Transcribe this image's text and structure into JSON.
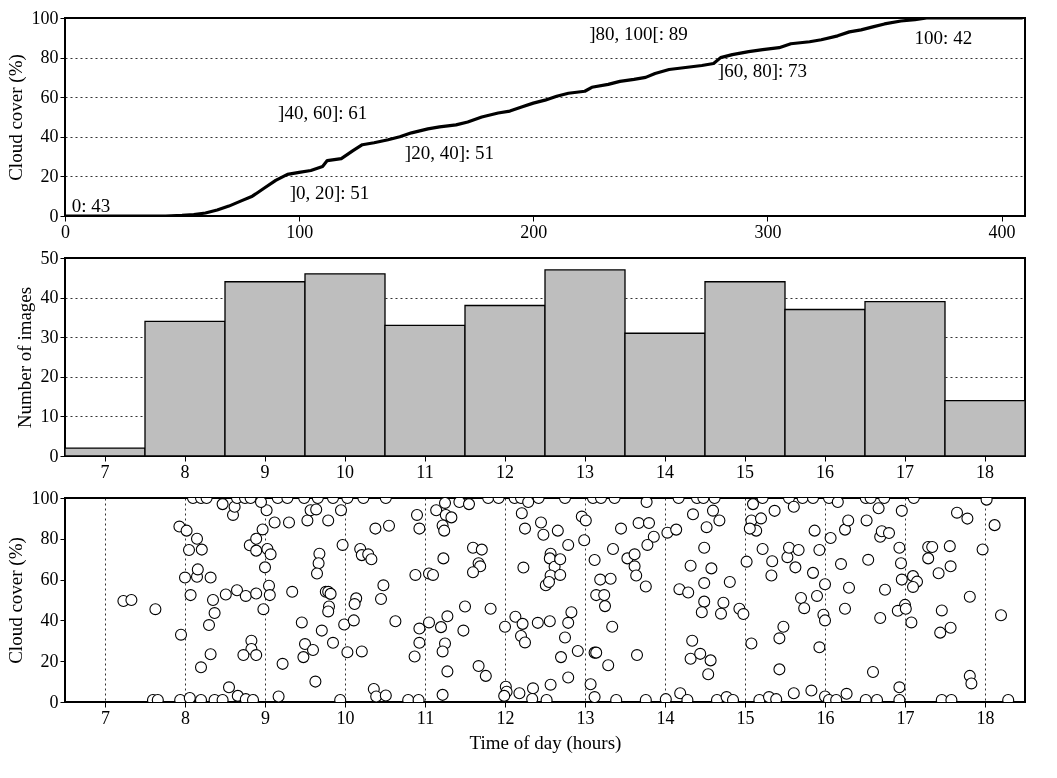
{
  "chart_data": [
    {
      "type": "line",
      "ylabel": "Cloud cover (%)",
      "xlim": [
        0,
        410
      ],
      "xticks": [
        0,
        100,
        200,
        300,
        400
      ],
      "ylim": [
        0,
        100
      ],
      "yticks": [
        0,
        20,
        40,
        60,
        80,
        100
      ],
      "grid": "y",
      "series": [
        {
          "color": "#000000",
          "x": [
            0,
            43,
            50,
            55,
            60,
            65,
            70,
            75,
            80,
            85,
            90,
            95,
            100,
            105,
            110,
            112,
            118,
            123,
            127,
            132,
            138,
            143,
            148,
            155,
            160,
            167,
            172,
            178,
            185,
            190,
            195,
            200,
            205,
            210,
            215,
            222,
            225,
            232,
            237,
            243,
            248,
            252,
            258,
            265,
            272,
            277,
            280,
            285,
            292,
            298,
            305,
            310,
            318,
            323,
            330,
            335,
            340,
            345,
            350,
            357,
            363,
            368,
            409
          ],
          "values": [
            0,
            0,
            0.3,
            0.7,
            1.5,
            3,
            5,
            7.5,
            10,
            14,
            18,
            21,
            22,
            23,
            25,
            28,
            29,
            33,
            36,
            37,
            38.5,
            40,
            42,
            44,
            45,
            46,
            47.5,
            50,
            52,
            53,
            55,
            57,
            58.5,
            60.5,
            62,
            63,
            65,
            66.5,
            68,
            69,
            70,
            72,
            74,
            75,
            76,
            77,
            80,
            81.5,
            83,
            84,
            85,
            87,
            88,
            89,
            91,
            93,
            94,
            95.5,
            97,
            98.5,
            99.2,
            100,
            100
          ]
        }
      ],
      "annotations": [
        "0: 43",
        "]0, 20]: 51",
        "]40, 60]: 61",
        "]20, 40]: 51",
        "]80, 100[: 89",
        "]60, 80]: 73",
        "100: 42"
      ]
    },
    {
      "type": "bar",
      "ylabel": "Number of images",
      "color": "#bebebe",
      "categories": [
        "7",
        "8",
        "9",
        "10",
        "11",
        "12",
        "13",
        "14",
        "15",
        "16",
        "17",
        "18"
      ],
      "values": [
        2,
        34,
        44,
        46,
        33,
        38,
        47,
        31,
        44,
        37,
        39,
        14
      ],
      "ylim": [
        0,
        50
      ],
      "yticks": [
        0,
        10,
        20,
        30,
        40,
        50
      ],
      "grid": "y"
    },
    {
      "type": "scatter",
      "xlabel": "Time of day (hours)",
      "ylabel": "Cloud cover (%)",
      "marker": "circle",
      "xlim": [
        6.5,
        18.5
      ],
      "xticks": [
        7,
        8,
        9,
        10,
        11,
        12,
        13,
        14,
        15,
        16,
        17,
        18
      ],
      "ylim": [
        0,
        100
      ],
      "yticks": [
        0,
        20,
        40,
        60,
        80,
        100
      ],
      "grid": "x",
      "series": [
        {
          "color": "#000000",
          "x": [
            7.23,
            7.33,
            7.63,
            7.6,
            7.66,
            7.95,
            7.93,
            8.02,
            8.15,
            8.05,
            8.21,
            8.0,
            8.15,
            8.16,
            8.32,
            8.07,
            8.35,
            8.37,
            8.3,
            8.32,
            8.2,
            8.51,
            8.65,
            8.76,
            8.89,
            8.81,
            8.89,
            8.89,
            8.97,
            9.02,
            8.6,
            8.62,
            8.47,
            8.1,
            8.2,
            8.27,
            8.65,
            8.75,
            8.82,
            8.95,
            9.16,
            9.28,
            9.49,
            9.66,
            9.12,
            9.3,
            9.53,
            9.57,
            9.64,
            9.03,
            9.07,
            9.0,
            9.05,
            9.06,
            8.98,
            9.34,
            9.46,
            9.5,
            9.48,
            9.6,
            8.83,
            8.83,
            8.73,
            8.89,
            9.22,
            9.63,
            9.68,
            9.67,
            9.65,
            9.76,
            8.55,
            8.66,
            8.76,
            8.85,
            7.94,
            8.06,
            8.2,
            8.37,
            8.47,
            9.17,
            9.79,
            9.95,
            9.85,
            10.03,
            10.23,
            10.51,
            9.97,
            10.19,
            10.21,
            10.29,
            10.33,
            10.38,
            10.55,
            9.79,
            9.82,
            9.8,
            9.79,
            10.14,
            10.12,
            10.48,
            10.45,
            9.99,
            10.11,
            9.71,
            9.85,
            10.03,
            10.21,
            10.63,
            10.36,
            10.39,
            10.51,
            9.94,
            10.79,
            10.92,
            10.9,
            10.93,
            10.88,
            11.05,
            11.1,
            10.93,
            10.93,
            10.87,
            11.05,
            11.2,
            11.28,
            11.25,
            11.22,
            11.28,
            11.22,
            11.14,
            11.25,
            11.26,
            11.33,
            11.22,
            11.24,
            11.23,
            11.43,
            11.55,
            11.79,
            11.92,
            11.6,
            11.71,
            11.67,
            11.69,
            11.6,
            11.5,
            11.82,
            11.48,
            11.67,
            11.76,
            12.0,
            12.01,
            12.02,
            11.99,
            12.18,
            12.35,
            12.34,
            12.57,
            12.52,
            12.12,
            12.2,
            12.29,
            12.42,
            12.21,
            12.25,
            12.45,
            12.48,
            12.66,
            12.57,
            12.56,
            12.62,
            12.57,
            12.51,
            12.55,
            12.23,
            12.13,
            12.22,
            12.2,
            12.25,
            12.41,
            12.56,
            12.79,
            12.69,
            12.69,
            12.83,
            12.79,
            12.75,
            12.7,
            12.91,
            12.79,
            12.96,
            13.01,
            12.99,
            12.75,
            13.1,
            13.2,
            13.37,
            13.12,
            13.19,
            13.32,
            13.14,
            13.24,
            13.25,
            13.34,
            13.12,
            13.14,
            13.29,
            13.07,
            13.12,
            13.39,
            13.76,
            13.35,
            13.45,
            13.67,
            13.8,
            13.86,
            13.78,
            13.53,
            13.62,
            13.62,
            13.64,
            13.76,
            13.65,
            13.77,
            14.03,
            14.14,
            14.17,
            14.4,
            14.48,
            14.62,
            14.35,
            14.6,
            14.68,
            14.52,
            14.49,
            14.32,
            14.58,
            14.49,
            14.81,
            14.18,
            14.29,
            14.49,
            14.46,
            14.73,
            14.7,
            14.93,
            14.98,
            14.34,
            14.32,
            14.44,
            14.57,
            14.54,
            14.19,
            14.01,
            14.28,
            14.65,
            14.77,
            14.85,
            15.08,
            15.02,
            15.08,
            15.1,
            15.14,
            15.2,
            15.06,
            15.22,
            15.55,
            15.61,
            15.37,
            15.22,
            15.34,
            15.33,
            15.53,
            15.55,
            15.63,
            15.48,
            15.43,
            15.43,
            15.18,
            15.3,
            15.39,
            15.61,
            15.72,
            15.85,
            16.05,
            16.16,
            15.67,
            15.87,
            16.07,
            15.93,
            15.85,
            16.0,
            15.7,
            15.74,
            15.9,
            15.98,
            16.0,
            15.93,
            15.83,
            16.0,
            16.05,
            16.14,
            16.27,
            16.25,
            16.29,
            16.2,
            16.3,
            16.25,
            16.51,
            16.57,
            16.74,
            16.67,
            16.52,
            16.54,
            16.69,
            16.71,
            16.8,
            16.75,
            16.69,
            16.6,
            16.51,
            16.65,
            16.96,
            16.93,
            16.95,
            16.96,
            17.0,
            16.91,
            17.01,
            17.08,
            16.93,
            16.93,
            17.11,
            17.1,
            17.15,
            17.1,
            17.29,
            17.34,
            17.29,
            17.42,
            17.56,
            17.57,
            17.46,
            17.44,
            17.57,
            17.46,
            17.58,
            17.65,
            17.78,
            17.81,
            17.81,
            17.83,
            17.97,
            18.02,
            18.12,
            18.2,
            18.29
          ],
          "values": [
            49.5,
            50,
            45.5,
            1,
            1,
            33,
            86,
            84,
            80,
            74.5,
            74.7,
            61,
            61.4,
            65,
            61,
            52.4,
            50,
            43.6,
            37.7,
            23.4,
            17,
            52.7,
            54.8,
            52,
            53.2,
            76.8,
            74.2,
            80,
            84.6,
            94,
            91.7,
            95.7,
            97,
            100,
            100,
            100,
            100,
            100,
            100,
            98,
            100,
            100,
            100,
            100,
            88,
            88,
            89,
            94,
            94.4,
            75,
            72.4,
            66,
            57,
            52.4,
            45.5,
            54,
            39,
            28.4,
            22,
            25.5,
            30,
            26,
            23,
            23,
            18.7,
            10,
            72.7,
            68,
            63,
            54,
            7.2,
            3,
            1.4,
            1,
            1,
            2,
            1,
            1,
            1,
            2.7,
            89,
            94,
            100,
            100,
            100,
            100,
            77,
            75,
            72,
            72.4,
            70,
            85,
            86.4,
            54,
            53,
            46.8,
            44.4,
            50.8,
            48,
            57.2,
            50.5,
            38,
            40,
            35,
            29,
            24.4,
            24.8,
            39.6,
            6.4,
            2.7,
            3.2,
            1,
            1,
            1,
            91.7,
            85,
            62.3,
            63,
            62.3,
            36,
            29,
            22.3,
            39,
            36.7,
            42,
            28.7,
            24.8,
            15,
            3.5,
            94,
            97.6,
            91.7,
            90.5,
            86.5,
            84,
            70.4,
            98,
            97,
            100,
            100,
            75.6,
            74.7,
            68,
            66.5,
            63.6,
            46.8,
            45.7,
            35,
            17.6,
            12.8,
            36.9,
            7.5,
            5,
            3,
            4.3,
            6.7,
            1.5,
            8.5,
            1,
            100,
            100,
            98,
            100,
            92.5,
            85,
            88,
            82,
            84,
            72.7,
            70.4,
            66.3,
            62,
            57.2,
            58.8,
            65.9,
            41.8,
            38.3,
            32.4,
            29.2,
            38.8,
            39.6,
            77,
            70,
            62.3,
            44,
            38.8,
            31.6,
            22,
            25,
            12,
            90.9,
            89,
            79.3,
            100,
            100,
            100,
            100,
            69.6,
            60,
            60.4,
            52.4,
            52.4,
            47,
            36.9,
            24.2,
            24.2,
            18,
            8.7,
            2.4,
            1,
            1,
            75,
            85,
            87.7,
            87.7,
            81,
            77,
            70.4,
            72.4,
            66.5,
            62,
            56.6,
            23,
            98,
            83,
            84.5,
            100,
            100,
            100,
            100,
            92,
            93.8,
            89,
            85.7,
            75.6,
            66.8,
            65.5,
            58.3,
            58.8,
            55.3,
            53.7,
            49.2,
            44,
            48.7,
            43.3,
            45.7,
            43.1,
            30,
            21.2,
            23.6,
            20.4,
            13.6,
            4.3,
            1.4,
            1,
            1,
            2.4,
            1,
            28.7,
            68.8,
            89,
            97,
            84,
            90,
            85,
            100,
            100,
            95.7,
            93.7,
            75,
            69,
            62,
            71,
            75.6,
            66,
            36.9,
            31.2,
            16,
            1,
            2.4,
            1.4,
            4.3,
            100,
            100,
            100,
            98,
            74.5,
            84,
            80.4,
            74.5,
            63.3,
            57.7,
            51,
            46,
            52,
            42.8,
            40,
            26.8,
            5.6,
            2.7,
            1,
            1,
            4,
            84.5,
            89,
            67.6,
            56,
            45.7,
            100,
            100,
            100,
            95,
            89,
            69.7,
            81,
            83.7,
            82.8,
            55,
            41.2,
            14.7,
            1,
            1,
            93.7,
            75.6,
            68,
            60,
            47.6,
            44.7,
            45.7,
            39,
            7.2,
            1,
            100,
            61.7,
            59,
            56.4,
            76,
            76,
            70.4,
            63.1,
            76.4,
            66.5,
            44.9,
            34,
            36.4,
            1,
            1,
            92.8,
            89.9,
            51.6,
            12.8,
            9.1,
            74.8,
            99.2,
            86.7,
            42.5,
            1
          ]
        }
      ]
    }
  ]
}
